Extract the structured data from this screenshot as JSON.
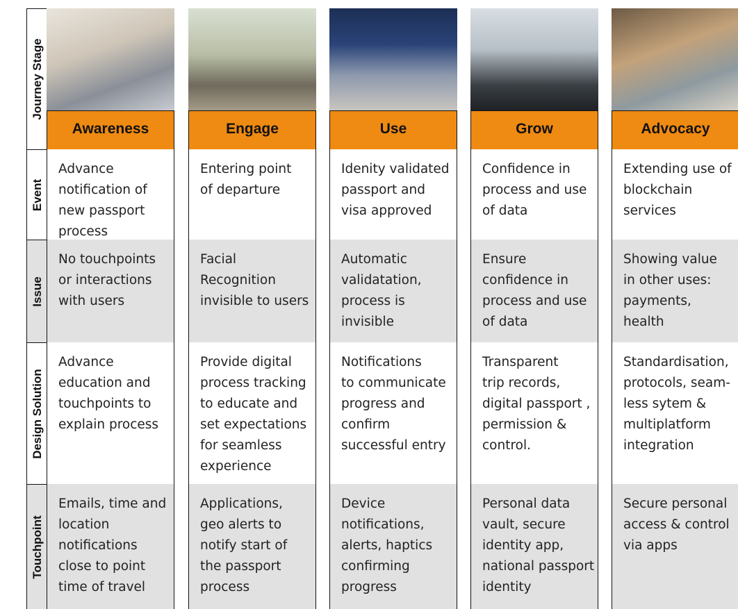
{
  "row_labels": [
    "Journey Stage",
    "Event",
    "Issue",
    "Design Solution",
    "Touchpoint"
  ],
  "stages": [
    {
      "name": "Awareness",
      "event": "Advance\nnotification of\nnew passport\nprocess",
      "issue": "No touchpoints\nor interactions\nwith users",
      "design_solution": "Advance\neducation and\ntouchpoints to\nexplain process",
      "touchpoint": "Emails, time and\nlocation\nnotifications\nclose to point\ntime of travel"
    },
    {
      "name": "Engage",
      "event": "Entering point\nof departure",
      "issue": "Facial Recognition\ninvisible to users",
      "design_solution": "Provide digital\nprocess tracking\nto educate and\nset expectations\nfor seamless\nexperience",
      "touchpoint": "Applications,\ngeo alerts to\nnotify start of\nthe passport\nprocess"
    },
    {
      "name": "Use",
      "event": "Idenity validated\npassport and\nvisa approved",
      "issue": "Automatic\nvalidatation,\nprocess is\ninvisible",
      "design_solution": "Notifications\nto communicate\nprogress and\nconfirm\nsuccessful entry",
      "touchpoint": "Device\nnotifications,\nalerts, haptics\nconfirming\nprogress"
    },
    {
      "name": "Grow",
      "event": "Confidence in\nprocess and use\nof data",
      "issue": "Ensure\nconfidence in\nprocess and use\nof data",
      "design_solution": "Transparent\ntrip records,\ndigital passport ,\npermission &\ncontrol.",
      "touchpoint": "Personal data\nvault, secure\nidentity app,\nnational passport\nidentity"
    },
    {
      "name": "Advocacy",
      "event": "Extending use of\nblockchain\nservices",
      "issue": "Showing value\nin other uses:\npayments,\nhealth",
      "design_solution": "Standardisation,\nprotocols, seam-\nless sytem &\nmultiplatform\nintegration",
      "touchpoint": "Secure personal\naccess & control\nvia apps"
    }
  ]
}
